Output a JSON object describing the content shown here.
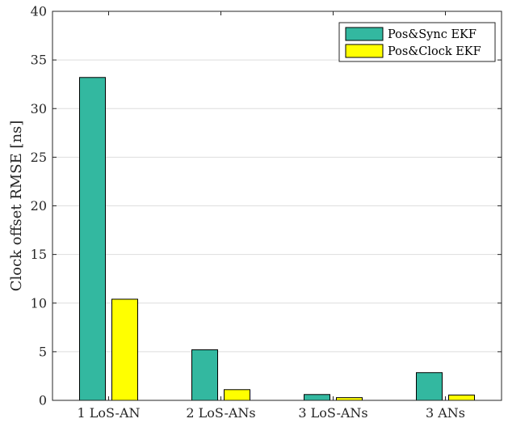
{
  "chart_data": {
    "type": "bar",
    "categories": [
      "1 LoS-AN",
      "2 LoS-ANs",
      "3 LoS-ANs",
      "3 ANs"
    ],
    "series": [
      {
        "name": "Pos&Sync EKF",
        "color": "#33b8a0",
        "values": [
          33.2,
          5.2,
          0.6,
          2.85
        ]
      },
      {
        "name": "Pos&Clock EKF",
        "color": "#ffff00",
        "values": [
          10.4,
          1.1,
          0.28,
          0.55
        ]
      }
    ],
    "ylabel": "Clock offset RMSE [ns]",
    "ylim": [
      0,
      40
    ],
    "yticks": [
      0,
      5,
      10,
      15,
      20,
      25,
      30,
      35,
      40
    ],
    "grid": true,
    "legend_position": "top-right"
  }
}
